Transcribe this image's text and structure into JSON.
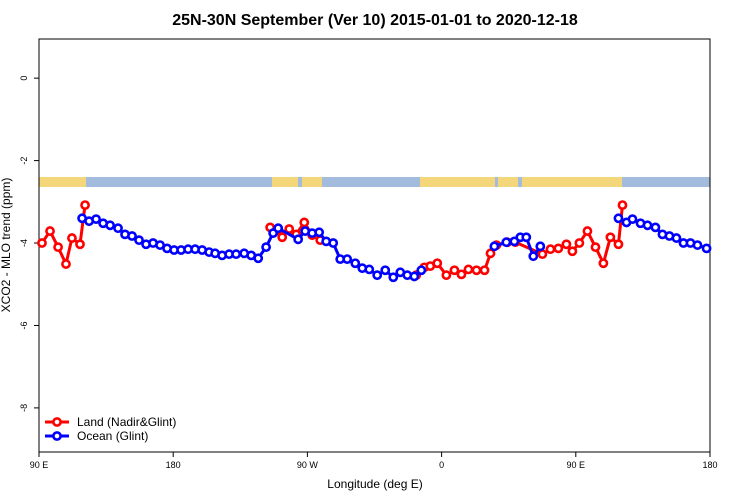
{
  "chart_data": {
    "type": "line",
    "title": "25N-30N September (Ver 10)   2015-01-01 to 2020-12-18",
    "x_label": "Longitude (deg E)",
    "y_label": "XCO2 - MLO trend (ppm)",
    "xlim": [
      90,
      540
    ],
    "ylim": [
      -9.07,
      0.95
    ],
    "xticks": [
      {
        "value": 90,
        "label": "90 E"
      },
      {
        "value": 180,
        "label": "180"
      },
      {
        "value": 270,
        "label": "90 W"
      },
      {
        "value": 360,
        "label": "0"
      },
      {
        "value": 450,
        "label": "90 E"
      },
      {
        "value": 540,
        "label": "180"
      }
    ],
    "yticks": [
      0,
      -2,
      -4,
      -6,
      -8
    ],
    "legend": "bottom-left",
    "series": [
      {
        "name": "Land (Nadir&Glint)",
        "color": "#ff0000",
        "x": [
          92,
          97.4,
          102.8,
          108.1,
          112.1,
          117.5,
          120.9,
          null,
          245,
          250.4,
          253.1,
          257.8,
          262.5,
          267.9,
          273.2,
          278.6,
          null,
          343,
          348.4,
          352.4,
          357.1,
          363.2,
          368.6,
          373.3,
          378,
          383.4,
          388.8,
          392.8,
          396.8,
          404.1,
          409.5,
          427.6,
          433,
          438.3,
          443.7,
          447.7,
          452.4,
          457.8,
          463.2,
          468.5,
          473.2,
          478.6,
          481.3
        ],
        "values": [
          -4.0,
          -3.71,
          -4.1,
          -4.51,
          -3.88,
          -4.03,
          -3.08,
          null,
          -3.62,
          -3.69,
          -3.86,
          -3.66,
          -3.79,
          -3.5,
          -3.81,
          -3.93,
          null,
          -4.78,
          -4.59,
          -4.56,
          -4.49,
          -4.78,
          -4.66,
          -4.76,
          -4.64,
          -4.66,
          -4.66,
          -4.25,
          -4.05,
          -3.98,
          -3.98,
          -4.27,
          -4.15,
          -4.13,
          -4.03,
          -4.2,
          -4.0,
          -3.71,
          -4.1,
          -4.49,
          -3.86,
          -4.03,
          -3.08
        ]
      },
      {
        "name": "Ocean (Glint)",
        "color": "#0000ff",
        "x": [
          118.9,
          123.6,
          128.3,
          133,
          137.7,
          143,
          147.7,
          152.4,
          157.1,
          161.8,
          166.5,
          171.2,
          175.9,
          180.6,
          185.3,
          190,
          194.7,
          199.4,
          204.1,
          208.1,
          212.8,
          217.5,
          222.2,
          227.6,
          232.3,
          237,
          242.3,
          247,
          250.4,
          263.8,
          268.5,
          273.2,
          277.9,
          282.6,
          287.3,
          292,
          296.7,
          302.1,
          306.8,
          311.5,
          316.8,
          322.2,
          327.6,
          332.3,
          337,
          341.7,
          346.4,
          null,
          395.4,
          403.4,
          408.8,
          412.8,
          416.8,
          421.5,
          426.2,
          null,
          478.6,
          484,
          488,
          493.4,
          498.1,
          503.4,
          508.1,
          512.8,
          517.5,
          522.2,
          526.9,
          531.6,
          537.7
        ],
        "values": [
          -3.4,
          -3.47,
          -3.42,
          -3.52,
          -3.57,
          -3.64,
          -3.79,
          -3.83,
          -3.93,
          -4.03,
          -4.0,
          -4.05,
          -4.13,
          -4.17,
          -4.17,
          -4.15,
          -4.15,
          -4.17,
          -4.22,
          -4.25,
          -4.3,
          -4.27,
          -4.27,
          -4.25,
          -4.3,
          -4.37,
          -4.1,
          -3.76,
          -3.64,
          -3.91,
          -3.71,
          -3.76,
          -3.74,
          -3.96,
          -4.0,
          -4.39,
          -4.39,
          -4.49,
          -4.61,
          -4.64,
          -4.78,
          -4.66,
          -4.83,
          -4.71,
          -4.78,
          -4.81,
          -4.66,
          null,
          -4.08,
          -3.98,
          -3.96,
          -3.86,
          -3.86,
          -4.32,
          -4.08,
          null,
          -3.4,
          -3.5,
          -3.42,
          -3.52,
          -3.57,
          -3.62,
          -3.79,
          -3.83,
          -3.88,
          -4.0,
          -4.0,
          -4.05,
          -4.13
        ]
      }
    ]
  }
}
